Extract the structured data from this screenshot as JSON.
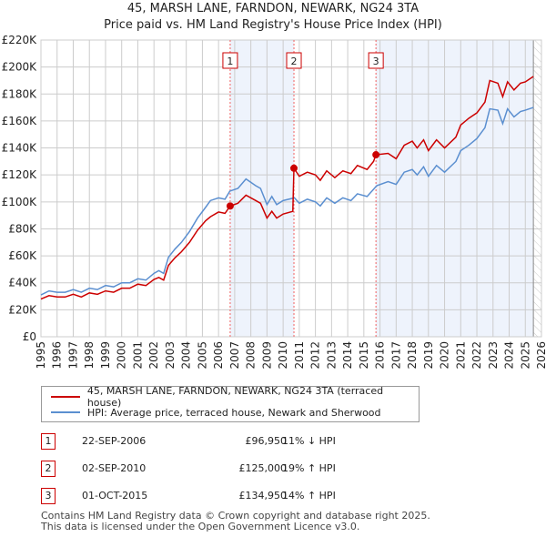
{
  "title_line1": "45, MARSH LANE, FARNDON, NEWARK, NG24 3TA",
  "title_line2": "Price paid vs. HM Land Registry's House Price Index (HPI)",
  "chart_data": {
    "type": "line",
    "xlim": [
      1995,
      2026
    ],
    "ylim": [
      0,
      220000
    ],
    "x_ticks": [
      "1995",
      "1996",
      "1997",
      "1998",
      "1999",
      "2000",
      "2001",
      "2002",
      "2003",
      "2004",
      "2005",
      "2006",
      "2007",
      "2008",
      "2009",
      "2010",
      "2011",
      "2012",
      "2013",
      "2014",
      "2015",
      "2016",
      "2017",
      "2018",
      "2019",
      "2020",
      "2021",
      "2022",
      "2023",
      "2024",
      "2025",
      "2026"
    ],
    "y_ticks": [
      {
        "v": 0,
        "label": "£0"
      },
      {
        "v": 20000,
        "label": "£20K"
      },
      {
        "v": 40000,
        "label": "£40K"
      },
      {
        "v": 60000,
        "label": "£60K"
      },
      {
        "v": 80000,
        "label": "£80K"
      },
      {
        "v": 100000,
        "label": "£100K"
      },
      {
        "v": 120000,
        "label": "£120K"
      },
      {
        "v": 140000,
        "label": "£140K"
      },
      {
        "v": 160000,
        "label": "£160K"
      },
      {
        "v": 180000,
        "label": "£180K"
      },
      {
        "v": 200000,
        "label": "£200K"
      },
      {
        "v": 220000,
        "label": "£220K"
      }
    ],
    "grid": true,
    "series": [
      {
        "name": "45, MARSH LANE, FARNDON, NEWARK, NG24 3TA (terraced house)",
        "color": "#cc0000",
        "x": [
          1995,
          1995.5,
          1996,
          1996.5,
          1997,
          1997.5,
          1998,
          1998.5,
          1999,
          1999.5,
          2000,
          2000.5,
          2001,
          2001.5,
          2002,
          2002.3,
          2002.6,
          2002.9,
          2003.3,
          2003.7,
          2004.2,
          2004.7,
          2005.2,
          2005.5,
          2006,
          2006.4,
          2006.72,
          2007.2,
          2007.7,
          2008.3,
          2008.6,
          2009,
          2009.3,
          2009.6,
          2010,
          2010.6,
          2010.67,
          2011,
          2011.5,
          2012,
          2012.3,
          2012.7,
          2013.2,
          2013.7,
          2014.2,
          2014.6,
          2015.2,
          2015.6,
          2015.75,
          2016.5,
          2017,
          2017.5,
          2018,
          2018.3,
          2018.7,
          2019,
          2019.5,
          2020,
          2020.7,
          2021,
          2021.5,
          2022,
          2022.5,
          2022.8,
          2023.3,
          2023.6,
          2023.9,
          2024.3,
          2024.7,
          2025,
          2025.5
        ],
        "y": [
          28,
          30.5,
          29.5,
          29.5,
          31.5,
          29.5,
          32.5,
          31.5,
          34,
          33,
          36,
          36,
          39,
          38,
          42.5,
          44,
          42,
          53,
          58.5,
          63,
          70,
          79,
          86,
          89,
          92.5,
          91.5,
          96.95,
          99,
          105,
          101,
          99,
          88,
          93,
          88,
          91,
          93,
          125,
          119,
          122,
          120,
          116,
          123,
          118,
          123,
          121,
          127,
          124,
          130,
          134.95,
          136,
          132,
          142,
          145,
          140,
          146,
          138,
          146,
          140,
          148,
          157,
          162,
          166,
          174,
          190,
          188,
          178,
          189,
          183,
          188,
          189,
          193
        ]
      },
      {
        "name": "HPI: Average price, terraced house, Newark and Sherwood",
        "color": "#5b8fd0",
        "x": [
          1995,
          1995.5,
          1996,
          1996.5,
          1997,
          1997.5,
          1998,
          1998.5,
          1999,
          1999.5,
          2000,
          2000.5,
          2001,
          2001.5,
          2002,
          2002.3,
          2002.6,
          2002.9,
          2003.3,
          2003.7,
          2004.2,
          2004.7,
          2005.2,
          2005.5,
          2006,
          2006.4,
          2006.7,
          2007.2,
          2007.7,
          2008.3,
          2008.6,
          2009,
          2009.3,
          2009.6,
          2010,
          2010.7,
          2011,
          2011.5,
          2012,
          2012.3,
          2012.7,
          2013.2,
          2013.7,
          2014.2,
          2014.6,
          2015.2,
          2015.8,
          2016.5,
          2017,
          2017.5,
          2018,
          2018.3,
          2018.7,
          2019,
          2019.5,
          2020,
          2020.7,
          2021,
          2021.5,
          2022,
          2022.5,
          2022.8,
          2023.3,
          2023.6,
          2023.9,
          2024.3,
          2024.7,
          2025,
          2025.5
        ],
        "y": [
          31,
          34,
          33,
          33,
          35,
          33,
          36,
          35,
          38,
          37,
          40,
          40,
          43,
          42,
          47,
          49,
          47,
          59,
          65,
          70,
          78,
          88,
          96,
          101,
          103,
          102,
          108,
          110,
          117,
          112,
          110,
          98,
          104,
          98,
          101,
          103,
          99,
          102,
          100,
          97,
          103,
          99,
          103,
          101,
          106,
          104,
          112,
          115,
          113,
          122,
          124,
          120,
          126,
          119,
          127,
          122,
          130,
          138,
          142,
          147,
          155,
          169,
          168,
          158,
          169,
          163,
          167,
          168,
          170
        ]
      }
    ],
    "y_units": 1000,
    "sales": [
      {
        "id": "1",
        "x": 2006.72,
        "y": 96.95
      },
      {
        "id": "2",
        "x": 2010.67,
        "y": 125
      },
      {
        "id": "3",
        "x": 2015.75,
        "y": 134.95
      }
    ],
    "shaded_ranges": [
      [
        2006.72,
        2010.67
      ],
      [
        2015.75,
        2025.5
      ]
    ],
    "hatch_from": 2025.5
  },
  "legend": {
    "red": "45, MARSH LANE, FARNDON, NEWARK, NG24 3TA (terraced house)",
    "blue": "HPI: Average price, terraced house, Newark and Sherwood"
  },
  "transactions": [
    {
      "id": "1",
      "date": "22-SEP-2006",
      "price": "£96,950",
      "hpi": "11% ↓ HPI"
    },
    {
      "id": "2",
      "date": "02-SEP-2010",
      "price": "£125,000",
      "hpi": "19% ↑ HPI"
    },
    {
      "id": "3",
      "date": "01-OCT-2015",
      "price": "£134,950",
      "hpi": "14% ↑ HPI"
    }
  ],
  "footer_line1": "Contains HM Land Registry data © Crown copyright and database right 2025.",
  "footer_line2": "This data is licensed under the Open Government Licence v3.0."
}
